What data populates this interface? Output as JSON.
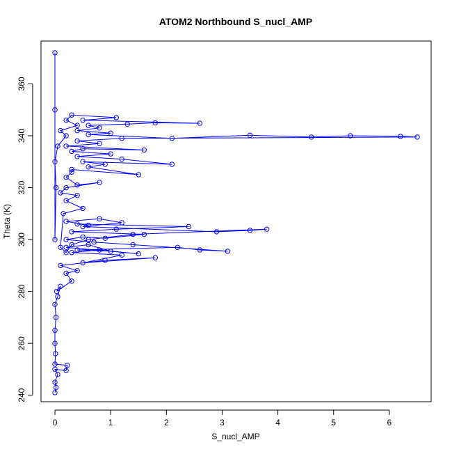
{
  "chart_data": {
    "type": "scatter",
    "title": "ATOM2 Northbound S_nucl_AMP",
    "xlabel": "S_nucl_AMP",
    "ylabel": "Theta (K)",
    "xlim": [
      -0.25,
      6.75
    ],
    "ylim": [
      237.5,
      376.5
    ],
    "xticks": [
      0,
      1,
      2,
      3,
      4,
      5,
      6
    ],
    "yticks": [
      240,
      260,
      280,
      300,
      320,
      340,
      360
    ],
    "grid": false,
    "legend": "none",
    "series": [
      {
        "color": "#0000ff",
        "marker": "open-circle",
        "connected": true,
        "x": [
          0.0,
          0.02,
          0.0,
          0.05,
          0.0,
          0.2,
          0.22,
          0.0,
          0.01,
          0.0,
          0.0,
          0.02,
          0.0,
          0.05,
          0.1,
          0.03,
          0.3,
          0.2,
          0.4,
          0.1,
          0.9,
          1.8,
          0.5,
          1.2,
          0.3,
          0.8,
          1.5,
          0.2,
          0.6,
          1.0,
          0.4,
          2.2,
          2.6,
          3.1,
          1.4,
          0.7,
          0.2,
          0.5,
          0.9,
          1.6,
          0.3,
          1.1,
          2.4,
          0.4,
          0.6,
          0.2,
          0.8,
          1.2,
          0.5,
          2.9,
          3.5,
          3.8,
          1.4,
          0.6,
          0.3,
          0.2,
          0.1,
          0.15,
          0.5,
          0.2,
          0.4,
          0.1,
          0.2,
          0.8,
          0.4,
          0.2,
          0.3,
          0.3,
          1.5,
          0.6,
          0.9,
          0.5,
          2.1,
          1.2,
          0.4,
          1.0,
          0.3,
          0.5,
          1.6,
          0.2,
          0.8,
          0.4,
          1.2,
          6.5,
          6.2,
          5.3,
          4.6,
          3.5,
          2.1,
          0.6,
          1.0,
          0.4,
          0.8,
          0.6,
          1.3,
          1.8,
          2.6,
          0.5,
          1.1,
          0.3,
          0.2,
          0.4,
          0.1,
          0.2,
          0.05,
          0.0,
          0.02,
          0.0,
          0.0,
          0.0
        ],
        "y": [
          241,
          243,
          245,
          248,
          250,
          249.5,
          251.5,
          252,
          256,
          260,
          265,
          270,
          275,
          278,
          282,
          280,
          284,
          287,
          288,
          290,
          292,
          293,
          291,
          294,
          295,
          296,
          294.5,
          297,
          298,
          295.5,
          296,
          297,
          296,
          295.5,
          298,
          299,
          300,
          301,
          300.5,
          302,
          303,
          304,
          305,
          306,
          305.5,
          307,
          308,
          306.5,
          305,
          303,
          303.5,
          304,
          302,
          300,
          298,
          295,
          297,
          310,
          312,
          315,
          317,
          318,
          320,
          322,
          321,
          324,
          326,
          327,
          325,
          328,
          329,
          330,
          329,
          331,
          332,
          333,
          334,
          335,
          334.5,
          336,
          337,
          338,
          339,
          339.5,
          339.8,
          340,
          339.5,
          340.2,
          339,
          340.5,
          341,
          342,
          343,
          344,
          344.5,
          345,
          344.8,
          346,
          347,
          348,
          346,
          344,
          342,
          340,
          336,
          330,
          320,
          300,
          350,
          372
        ]
      }
    ]
  }
}
